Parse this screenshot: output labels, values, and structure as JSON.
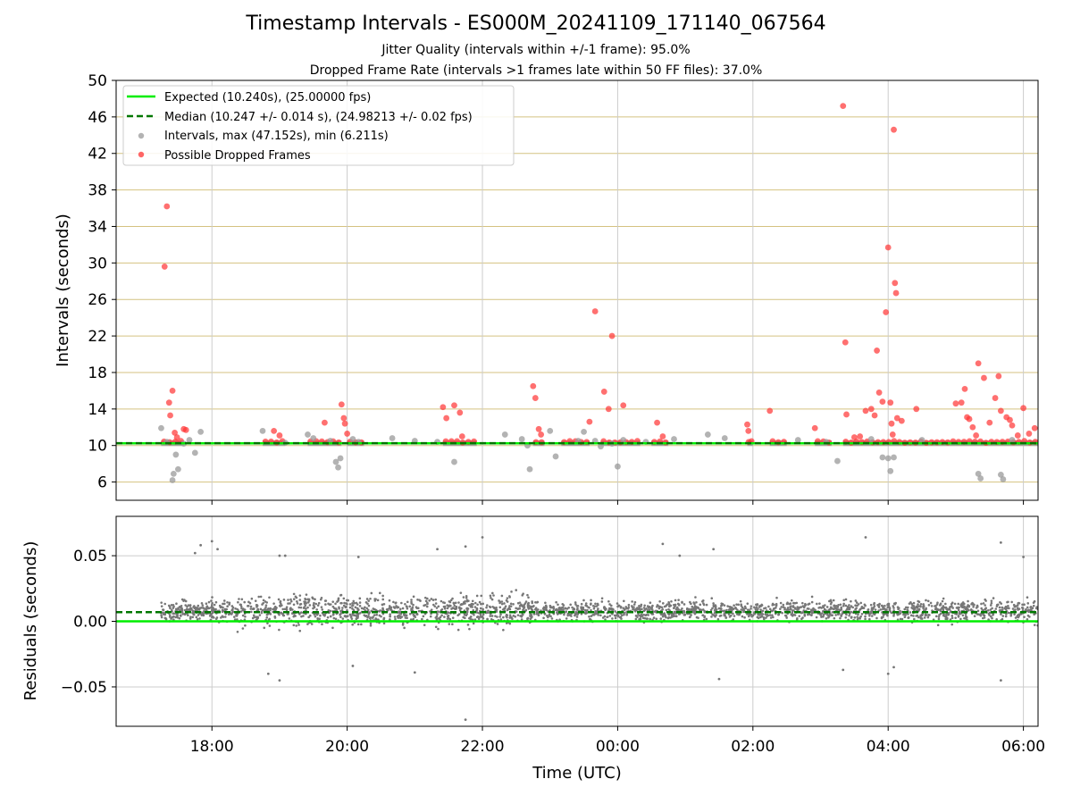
{
  "figure": {
    "title": "Timestamp Intervals - ES000M_20241109_171140_067564",
    "subtitle_jitter": "Jitter Quality (intervals within +/-1 frame): 95.0%",
    "subtitle_dropped": "Dropped Frame Rate (intervals >1 frames late within 50 FF files): 37.0%"
  },
  "colors": {
    "expected": "#00ee00",
    "median": "#007700",
    "intervals": "#999999",
    "dropped": "#ff3333",
    "residuals": "#777777",
    "hgrid_top": "#d4c281",
    "vgrid": "#cccccc"
  },
  "chart_data": [
    {
      "type": "scatter",
      "name": "intervals",
      "xlabel": "",
      "ylabel": "Intervals (seconds)",
      "grid": "on",
      "xlim": [
        "16:35",
        "06:13"
      ],
      "ylim": [
        4,
        50
      ],
      "yticks": [
        6,
        10,
        14,
        18,
        22,
        26,
        30,
        34,
        38,
        42,
        46,
        50
      ],
      "xticks": [
        "18:00",
        "20:00",
        "22:00",
        "00:00",
        "02:00",
        "04:00",
        "06:00"
      ],
      "legend_position": "top-left",
      "legend": [
        "Expected (10.240s), (25.00000 fps)",
        "Median (10.247 +/- 0.014 s), (24.98213 +/- 0.02 fps)",
        "Intervals, max (47.152s), min (6.211s)",
        "Possible Dropped Frames"
      ],
      "expected_value": 10.24,
      "median_value": 10.247,
      "baseline_segments": [
        [
          "17:15",
          "17:35"
        ],
        [
          "18:45",
          "19:05"
        ],
        [
          "19:25",
          "19:55"
        ],
        [
          "20:00",
          "20:15"
        ],
        [
          "21:25",
          "21:55"
        ],
        [
          "22:45",
          "22:55"
        ],
        [
          "23:10",
          "23:35"
        ],
        [
          "23:45",
          "00:20"
        ],
        [
          "00:30",
          "00:45"
        ],
        [
          "01:55",
          "02:00"
        ],
        [
          "02:15",
          "02:30"
        ],
        [
          "02:55",
          "03:10"
        ],
        [
          "03:20",
          "05:00"
        ],
        [
          "05:00",
          "06:13"
        ]
      ],
      "series": [
        {
          "name": "Intervals, max (47.152s), min (6.211s)",
          "points": [
            [
              "17:15",
              11.9
            ],
            [
              "17:20",
              10.4
            ],
            [
              "17:25",
              6.2
            ],
            [
              "17:26",
              6.9
            ],
            [
              "17:28",
              9.0
            ],
            [
              "17:30",
              7.4
            ],
            [
              "17:35",
              10.2
            ],
            [
              "17:40",
              10.6
            ],
            [
              "17:45",
              9.2
            ],
            [
              "17:50",
              11.5
            ],
            [
              "18:45",
              11.6
            ],
            [
              "19:05",
              10.3
            ],
            [
              "19:25",
              11.2
            ],
            [
              "19:30",
              10.8
            ],
            [
              "19:45",
              10.5
            ],
            [
              "19:50",
              8.2
            ],
            [
              "19:52",
              7.6
            ],
            [
              "19:54",
              8.6
            ],
            [
              "20:05",
              10.7
            ],
            [
              "20:10",
              10.4
            ],
            [
              "20:40",
              10.8
            ],
            [
              "21:00",
              10.5
            ],
            [
              "21:20",
              10.4
            ],
            [
              "21:35",
              8.2
            ],
            [
              "22:20",
              11.2
            ],
            [
              "22:35",
              10.7
            ],
            [
              "22:40",
              10.0
            ],
            [
              "22:42",
              7.4
            ],
            [
              "23:00",
              11.6
            ],
            [
              "23:05",
              8.8
            ],
            [
              "23:25",
              10.5
            ],
            [
              "23:30",
              11.5
            ],
            [
              "23:40",
              10.5
            ],
            [
              "23:45",
              9.9
            ],
            [
              "23:55",
              10.2
            ],
            [
              "00:00",
              7.7
            ],
            [
              "00:05",
              10.6
            ],
            [
              "00:25",
              10.4
            ],
            [
              "00:50",
              10.7
            ],
            [
              "01:20",
              11.2
            ],
            [
              "01:35",
              10.8
            ],
            [
              "02:40",
              10.6
            ],
            [
              "03:05",
              10.4
            ],
            [
              "03:15",
              8.3
            ],
            [
              "03:45",
              10.7
            ],
            [
              "03:55",
              8.7
            ],
            [
              "04:00",
              8.6
            ],
            [
              "04:02",
              7.2
            ],
            [
              "04:05",
              8.7
            ],
            [
              "04:30",
              10.6
            ],
            [
              "05:20",
              6.9
            ],
            [
              "05:22",
              6.4
            ],
            [
              "05:40",
              6.8
            ],
            [
              "05:42",
              6.3
            ],
            [
              "05:50",
              10.6
            ]
          ]
        },
        {
          "name": "Possible Dropped Frames",
          "points": [
            [
              "17:20",
              36.2
            ],
            [
              "17:18",
              29.6
            ],
            [
              "17:25",
              16.0
            ],
            [
              "17:22",
              14.7
            ],
            [
              "17:23",
              13.3
            ],
            [
              "17:27",
              11.4
            ],
            [
              "17:29",
              10.9
            ],
            [
              "17:35",
              11.8
            ],
            [
              "17:37",
              11.7
            ],
            [
              "18:55",
              11.6
            ],
            [
              "19:00",
              11.1
            ],
            [
              "19:40",
              12.5
            ],
            [
              "19:55",
              14.5
            ],
            [
              "19:57",
              13.0
            ],
            [
              "19:58",
              12.4
            ],
            [
              "20:00",
              11.3
            ],
            [
              "21:25",
              14.2
            ],
            [
              "21:28",
              13.0
            ],
            [
              "21:35",
              14.4
            ],
            [
              "21:40",
              13.6
            ],
            [
              "21:42",
              11.0
            ],
            [
              "22:45",
              16.5
            ],
            [
              "22:47",
              15.2
            ],
            [
              "22:50",
              11.8
            ],
            [
              "22:52",
              11.2
            ],
            [
              "23:40",
              24.7
            ],
            [
              "23:48",
              15.9
            ],
            [
              "23:52",
              14.0
            ],
            [
              "23:55",
              22.0
            ],
            [
              "23:35",
              12.6
            ],
            [
              "00:05",
              14.4
            ],
            [
              "00:35",
              12.5
            ],
            [
              "00:40",
              11.0
            ],
            [
              "01:55",
              12.3
            ],
            [
              "01:56",
              11.6
            ],
            [
              "02:15",
              13.8
            ],
            [
              "02:55",
              11.9
            ],
            [
              "03:20",
              47.2
            ],
            [
              "03:22",
              21.3
            ],
            [
              "03:23",
              13.4
            ],
            [
              "03:30",
              10.9
            ],
            [
              "03:35",
              11.0
            ],
            [
              "03:40",
              13.8
            ],
            [
              "03:45",
              14.0
            ],
            [
              "03:48",
              13.3
            ],
            [
              "03:50",
              20.4
            ],
            [
              "03:52",
              15.8
            ],
            [
              "03:55",
              14.8
            ],
            [
              "03:58",
              24.6
            ],
            [
              "04:00",
              31.7
            ],
            [
              "04:05",
              44.6
            ],
            [
              "04:06",
              27.8
            ],
            [
              "04:07",
              26.7
            ],
            [
              "04:02",
              14.7
            ],
            [
              "04:03",
              12.4
            ],
            [
              "04:04",
              11.2
            ],
            [
              "04:08",
              13.0
            ],
            [
              "04:12",
              12.7
            ],
            [
              "04:25",
              14.0
            ],
            [
              "05:00",
              14.6
            ],
            [
              "05:05",
              14.7
            ],
            [
              "05:08",
              16.2
            ],
            [
              "05:10",
              13.1
            ],
            [
              "05:12",
              12.9
            ],
            [
              "05:15",
              12.0
            ],
            [
              "05:18",
              11.1
            ],
            [
              "05:20",
              19.0
            ],
            [
              "05:25",
              17.4
            ],
            [
              "05:30",
              12.5
            ],
            [
              "05:35",
              15.2
            ],
            [
              "05:38",
              17.6
            ],
            [
              "05:40",
              13.8
            ],
            [
              "05:45",
              13.1
            ],
            [
              "05:48",
              12.8
            ],
            [
              "05:50",
              12.2
            ],
            [
              "05:55",
              11.1
            ],
            [
              "06:00",
              14.1
            ],
            [
              "06:05",
              11.3
            ],
            [
              "06:10",
              11.9
            ]
          ]
        }
      ]
    },
    {
      "type": "scatter",
      "name": "residuals",
      "xlabel": "Time (UTC)",
      "ylabel": "Residuals (seconds)",
      "grid": "on",
      "xlim": [
        "16:35",
        "06:13"
      ],
      "ylim": [
        -0.08,
        0.08
      ],
      "yticks": [
        0.05,
        0.0,
        -0.05
      ],
      "ytick_labels": [
        "0.05",
        "0.00",
        "−0.05"
      ],
      "xticks": [
        "18:00",
        "20:00",
        "22:00",
        "00:00",
        "02:00",
        "04:00",
        "06:00"
      ],
      "expected_value": 0.0,
      "median_value": 0.007,
      "data_range": [
        "17:15",
        "06:13"
      ],
      "outliers": [
        [
          "17:45",
          0.052
        ],
        [
          "17:50",
          0.058
        ],
        [
          "18:00",
          0.061
        ],
        [
          "18:05",
          0.055
        ],
        [
          "19:00",
          0.05
        ],
        [
          "19:05",
          0.05
        ],
        [
          "20:10",
          0.049
        ],
        [
          "21:20",
          0.055
        ],
        [
          "21:45",
          0.057
        ],
        [
          "22:00",
          0.064
        ],
        [
          "00:40",
          0.059
        ],
        [
          "00:55",
          0.05
        ],
        [
          "01:25",
          0.055
        ],
        [
          "03:40",
          0.064
        ],
        [
          "05:40",
          0.06
        ],
        [
          "06:00",
          0.049
        ],
        [
          "18:50",
          -0.04
        ],
        [
          "19:00",
          -0.045
        ],
        [
          "20:05",
          -0.034
        ],
        [
          "21:00",
          -0.039
        ],
        [
          "21:45",
          -0.075
        ],
        [
          "01:30",
          -0.044
        ],
        [
          "03:20",
          -0.037
        ],
        [
          "04:00",
          -0.04
        ],
        [
          "04:05",
          -0.035
        ],
        [
          "05:40",
          -0.045
        ]
      ]
    }
  ]
}
